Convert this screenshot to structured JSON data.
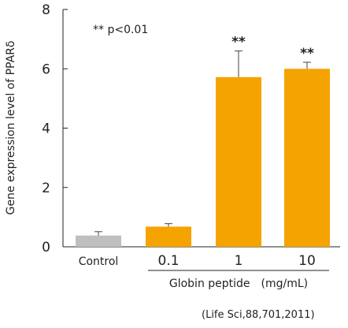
{
  "chart_data": {
    "type": "bar",
    "categories": [
      "Control",
      "0.1",
      "1",
      "10"
    ],
    "values": [
      0.38,
      0.68,
      5.72,
      6.0
    ],
    "errors": [
      0.13,
      0.1,
      0.88,
      0.22
    ],
    "significance": [
      "",
      "",
      "**",
      "**"
    ],
    "bar_colors": [
      "#bfbfbf",
      "#f5a300",
      "#f5a300",
      "#f5a300"
    ],
    "ylabel": "Gene expression level of PPARδ",
    "ylim": [
      0,
      8
    ],
    "yticks": [
      "0",
      "2",
      "4",
      "6",
      "8"
    ],
    "annotation": "** p<0.01",
    "group_label": "Globin peptide　(mg/mL)",
    "grid": false
  },
  "source": "(Life Sci,88,701,2011)"
}
